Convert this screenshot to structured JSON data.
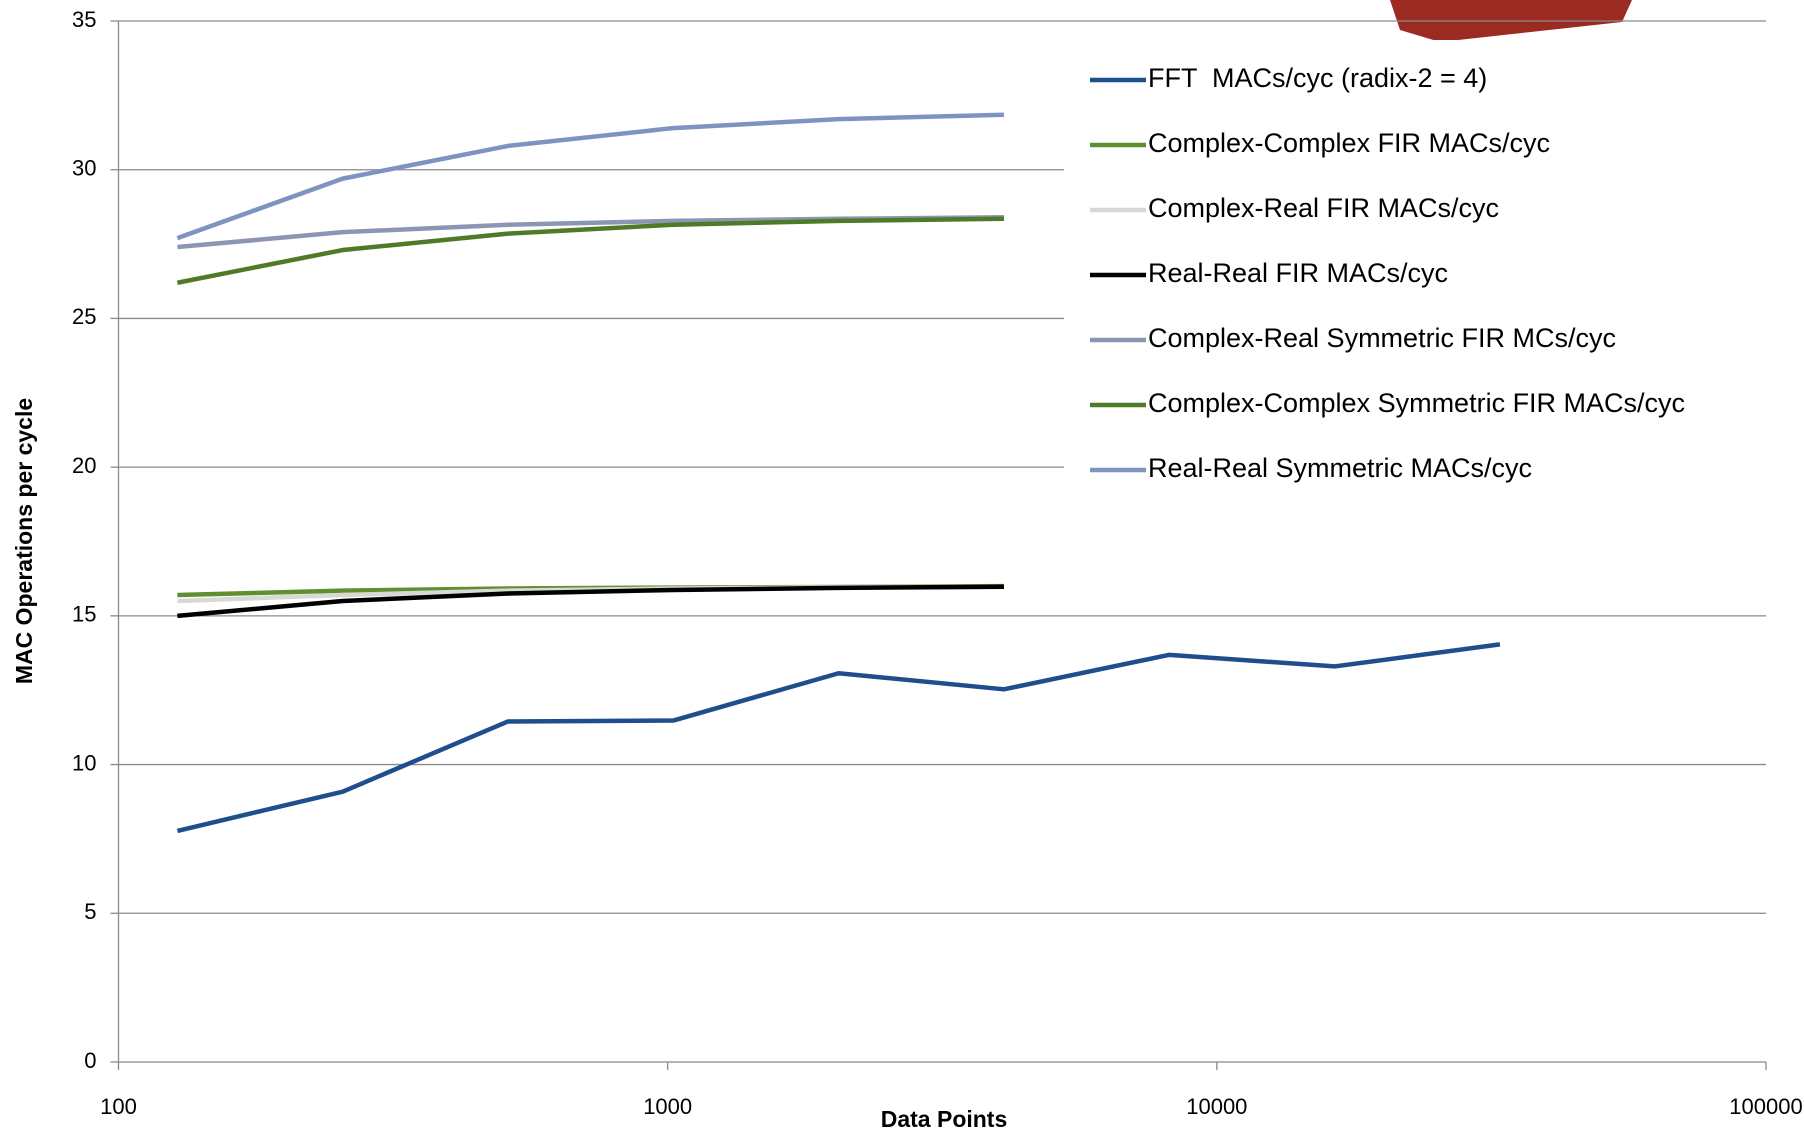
{
  "chart_data": {
    "type": "line",
    "x_label": "Data Points",
    "y_label": "MAC Operations per cycle",
    "x": [
      128,
      256,
      512,
      1024,
      2048,
      4096,
      8192,
      16384,
      32768
    ],
    "series": [
      {
        "name": "FFT  MACs/cyc (radix-2 = 4)",
        "color": "#1f4e8c",
        "values": [
          7.77,
          9.09,
          11.45,
          11.48,
          13.07,
          12.53,
          13.69,
          13.3,
          14.04
        ]
      },
      {
        "name": "Complex-Complex FIR MACs/cyc",
        "color": "#5e8f30",
        "values": [
          15.7,
          15.85,
          15.92,
          15.95,
          15.97,
          16.0,
          null,
          null,
          null
        ]
      },
      {
        "name": "Complex-Real FIR MACs/cyc",
        "color": "#d9d9d4",
        "values": [
          15.5,
          15.7,
          15.85,
          15.92,
          15.96,
          15.98,
          null,
          null,
          null
        ]
      },
      {
        "name": "Real-Real FIR MACs/cyc",
        "color": "#000000",
        "values": [
          15.0,
          15.5,
          15.75,
          15.87,
          15.94,
          15.98,
          null,
          null,
          null
        ]
      },
      {
        "name": "Complex-Real Symmetric FIR MCs/cyc",
        "color": "#8c96b4",
        "values": [
          27.4,
          27.9,
          28.15,
          28.28,
          28.35,
          28.4,
          null,
          null,
          null
        ]
      },
      {
        "name": "Complex-Complex Symmetric FIR MACs/cyc",
        "color": "#4f7a28",
        "values": [
          26.2,
          27.3,
          27.85,
          28.15,
          28.28,
          28.35,
          null,
          null,
          null
        ]
      },
      {
        "name": "Real-Real Symmetric MACs/cyc",
        "color": "#7f93c0",
        "values": [
          27.7,
          29.7,
          30.8,
          31.4,
          31.7,
          31.85,
          null,
          null,
          null
        ]
      }
    ],
    "xlim": [
      100,
      100000
    ],
    "xticks": [
      100,
      1000,
      10000,
      100000
    ],
    "xlog": true,
    "ylim": [
      0,
      35
    ],
    "yticks": [
      0,
      5,
      10,
      15,
      20,
      25,
      30,
      35
    ],
    "grid": true
  }
}
